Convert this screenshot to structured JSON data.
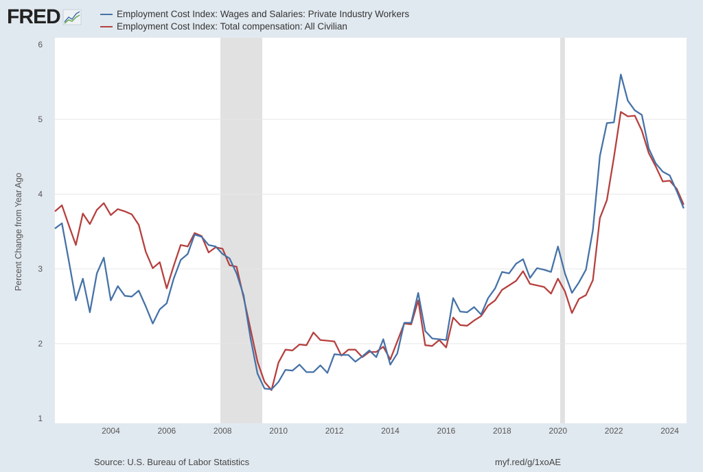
{
  "logo_text": "FRED",
  "footer": {
    "source": "Source: U.S. Bureau of Labor Statistics",
    "link": "myf.red/g/1xoAE"
  },
  "colors": {
    "wages": "#4572a7",
    "total": "#b5403e",
    "recession": "#e1e1e1",
    "background": "#e1e9f0"
  },
  "chart_data": {
    "type": "line",
    "title": "",
    "ylabel": "Percent Change from Year Ago",
    "xlabel": "",
    "ylim": [
      1,
      6
    ],
    "xlim": [
      2002,
      2024.6
    ],
    "yticks": [
      "1",
      "2",
      "3",
      "4",
      "5",
      "6"
    ],
    "xticks": [
      "2004",
      "2006",
      "2008",
      "2010",
      "2012",
      "2014",
      "2016",
      "2018",
      "2020",
      "2022",
      "2024"
    ],
    "x_start": "2002 Q1",
    "frequency": "quarterly",
    "recessions": [
      [
        2007.92,
        2009.42
      ],
      [
        2020.08,
        2020.25
      ]
    ],
    "grid": true,
    "legend": "top-left",
    "series": [
      {
        "name": "Employment Cost Index: Wages and Salaries: Private Industry Workers",
        "values": [
          3.54,
          3.61,
          3.1,
          2.58,
          2.87,
          2.42,
          2.94,
          3.15,
          2.58,
          2.77,
          2.64,
          2.63,
          2.71,
          2.5,
          2.27,
          2.46,
          2.54,
          2.87,
          3.12,
          3.2,
          3.46,
          3.43,
          3.32,
          3.3,
          3.2,
          3.14,
          2.94,
          2.65,
          2.07,
          1.6,
          1.4,
          1.39,
          1.49,
          1.65,
          1.64,
          1.72,
          1.62,
          1.62,
          1.71,
          1.61,
          1.86,
          1.85,
          1.85,
          1.76,
          1.83,
          1.91,
          1.82,
          2.06,
          1.72,
          1.87,
          2.28,
          2.28,
          2.68,
          2.17,
          2.07,
          2.06,
          2.05,
          2.61,
          2.43,
          2.42,
          2.49,
          2.39,
          2.61,
          2.74,
          2.96,
          2.94,
          3.07,
          3.13,
          2.88,
          3.01,
          2.99,
          2.96,
          3.3,
          2.94,
          2.68,
          2.82,
          2.99,
          3.52,
          4.51,
          4.95,
          4.96,
          5.6,
          5.25,
          5.12,
          5.06,
          4.61,
          4.41,
          4.3,
          4.25,
          4.04,
          3.81
        ]
      },
      {
        "name": "Employment Cost Index: Total compensation: All Civilian",
        "values": [
          3.77,
          3.85,
          3.58,
          3.32,
          3.74,
          3.6,
          3.79,
          3.88,
          3.72,
          3.8,
          3.77,
          3.73,
          3.59,
          3.23,
          3.01,
          3.09,
          2.74,
          3.04,
          3.32,
          3.3,
          3.48,
          3.44,
          3.22,
          3.29,
          3.27,
          3.05,
          3.03,
          2.62,
          2.19,
          1.76,
          1.49,
          1.38,
          1.75,
          1.92,
          1.91,
          1.99,
          1.98,
          2.15,
          2.05,
          2.04,
          2.03,
          1.84,
          1.92,
          1.92,
          1.82,
          1.89,
          1.89,
          1.96,
          1.79,
          2.03,
          2.27,
          2.26,
          2.58,
          1.98,
          1.97,
          2.05,
          1.95,
          2.35,
          2.25,
          2.24,
          2.31,
          2.37,
          2.51,
          2.58,
          2.72,
          2.78,
          2.84,
          2.97,
          2.8,
          2.78,
          2.76,
          2.67,
          2.87,
          2.7,
          2.41,
          2.6,
          2.65,
          2.85,
          3.68,
          3.92,
          4.49,
          5.1,
          5.04,
          5.05,
          4.85,
          4.55,
          4.37,
          4.17,
          4.18,
          4.07,
          3.86
        ]
      }
    ]
  }
}
